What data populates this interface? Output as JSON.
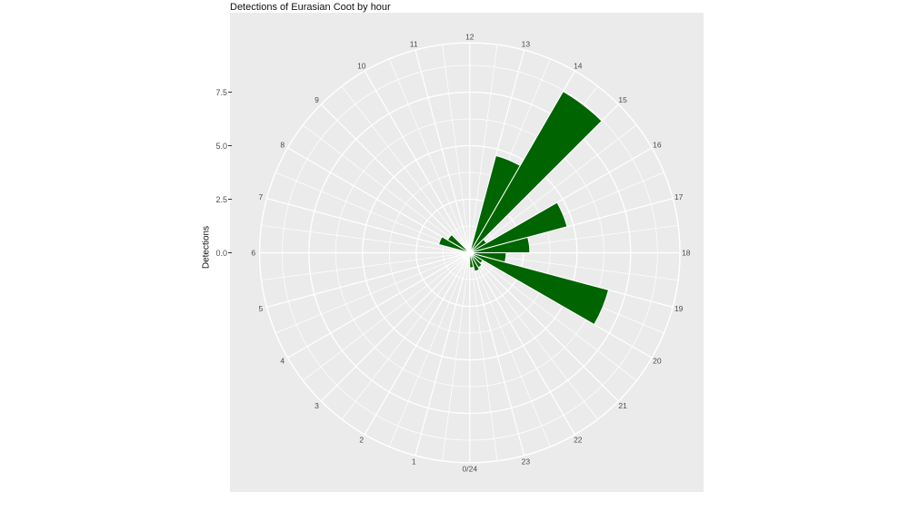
{
  "title": "Detections of Eurasian Coot by hour",
  "y_axis": {
    "title": "Detections",
    "tick_labels": [
      "0.0",
      "2.5",
      "5.0",
      "7.5"
    ]
  },
  "chart_data": {
    "type": "bar",
    "subtype": "polar-rose-clock",
    "title": "Detections of Eurasian Coot by hour",
    "ylabel": "Detections",
    "orientation": "hours 0-24 clockwise, 0/24 at bottom, 12 at top",
    "hour_labels": [
      "0/24",
      "1",
      "2",
      "3",
      "4",
      "5",
      "6",
      "7",
      "8",
      "9",
      "10",
      "11",
      "12",
      "13",
      "14",
      "15",
      "16",
      "17",
      "18",
      "19",
      "20",
      "21",
      "22",
      "23"
    ],
    "y_breaks": [
      0,
      2.5,
      5.0,
      7.5
    ],
    "y_minor_breaks": [
      1.25,
      3.75,
      6.25,
      8.75
    ],
    "ylim": [
      0,
      9.8
    ],
    "bars": [
      {
        "hour": 7,
        "value": 1.5
      },
      {
        "hour": 8,
        "value": 1.2
      },
      {
        "hour": 13,
        "value": 4.7
      },
      {
        "hour": 14,
        "value": 8.7
      },
      {
        "hour": 15,
        "value": 0.9
      },
      {
        "hour": 16,
        "value": 4.7
      },
      {
        "hour": 17,
        "value": 2.8
      },
      {
        "hour": 18,
        "value": 1.7
      },
      {
        "hour": 19,
        "value": 6.7
      },
      {
        "hour": 20,
        "value": 0.7
      },
      {
        "hour": 21,
        "value": 0.8
      },
      {
        "hour": 22,
        "value": 0.9
      },
      {
        "hour": 23,
        "value": 0.7
      }
    ],
    "colors": {
      "bar_fill": "#006400",
      "bar_stroke": "#ffffff",
      "panel_background": "#EBEBEB",
      "gridline": "#ffffff",
      "axis_text": "#4d4d4d",
      "title_text": "#111111"
    },
    "legend": "none",
    "grid": "on"
  }
}
